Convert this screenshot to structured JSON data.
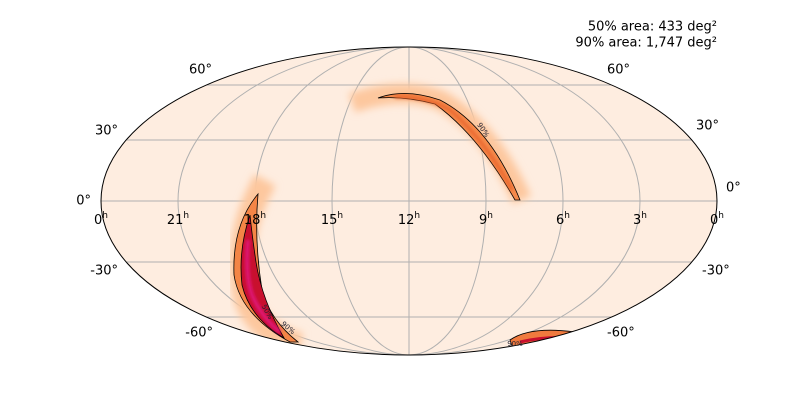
{
  "areas": [
    "50% area: 433 deg²",
    "90% area: 1,747 deg²"
  ],
  "lat_labels_left": [
    "60°",
    "30°",
    "0°",
    "-30°",
    "-60°"
  ],
  "lat_labels_right": [
    "60°",
    "30°",
    "0°",
    "-30°",
    "-60°"
  ],
  "ra_labels": [
    {
      "hour": "0",
      "suffix": "h"
    },
    {
      "hour": "21",
      "suffix": "h"
    },
    {
      "hour": "18",
      "suffix": "h"
    },
    {
      "hour": "15",
      "suffix": "h"
    },
    {
      "hour": "12",
      "suffix": "h"
    },
    {
      "hour": "9",
      "suffix": "h"
    },
    {
      "hour": "6",
      "suffix": "h"
    },
    {
      "hour": "3",
      "suffix": "h"
    },
    {
      "hour": "0",
      "suffix": "h"
    }
  ],
  "contour_labels": [
    "90%",
    "50%",
    "90%",
    "90%"
  ]
}
